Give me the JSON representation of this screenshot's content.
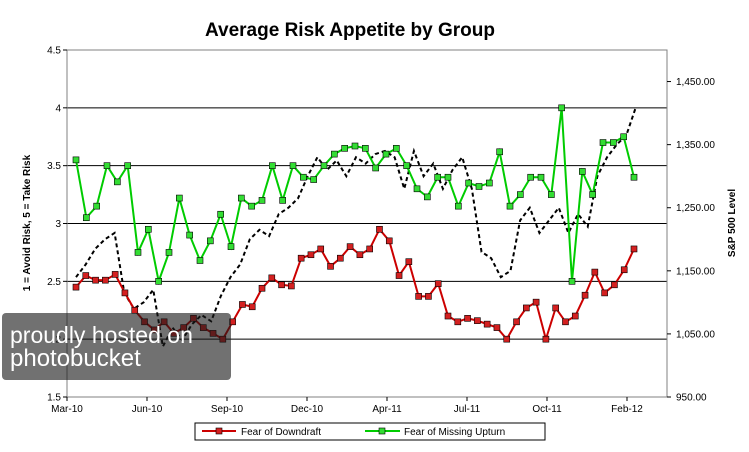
{
  "chart_data": {
    "type": "line",
    "title": "Average Risk Appetite by Group",
    "ylabel_left": "1 = Avoid Risk, 5 = Take Risk",
    "ylabel_right": "S&P 500 Level",
    "ylim_left": [
      1.5,
      4.5
    ],
    "ylim_right": [
      950,
      1500
    ],
    "left_ticks": [
      "1.5",
      "2",
      "2.5",
      "3",
      "3.5",
      "4",
      "4.5"
    ],
    "right_ticks": [
      "950.00",
      "1,050.00",
      "1,150.00",
      "1,250.00",
      "1,350.00",
      "1,450.00"
    ],
    "x_tick_labels": [
      "Mar-10",
      "Jun-10",
      "Sep-10",
      "Dec-10",
      "Apr-11",
      "Jul-11",
      "Oct-11",
      "Feb-12"
    ],
    "gridlines": true,
    "legend_position": "bottom",
    "series": [
      {
        "name": "Fear of Downdraft",
        "color": "#cc0000",
        "marker_fill": "#d42020",
        "values": [
          2.45,
          2.55,
          2.51,
          2.51,
          2.56,
          2.4,
          2.25,
          2.15,
          2.08,
          2.15,
          2.05,
          2.1,
          2.18,
          2.1,
          2.05,
          2.0,
          2.15,
          2.3,
          2.28,
          2.44,
          2.53,
          2.47,
          2.46,
          2.7,
          2.73,
          2.78,
          2.63,
          2.7,
          2.8,
          2.73,
          2.78,
          2.95,
          2.85,
          2.55,
          2.67,
          2.37,
          2.37,
          2.48,
          2.2,
          2.15,
          2.18,
          2.16,
          2.13,
          2.1,
          2.0,
          2.15,
          2.27,
          2.32,
          2.0,
          2.27,
          2.15,
          2.2,
          2.38,
          2.58,
          2.4,
          2.47,
          2.6,
          2.78
        ]
      },
      {
        "name": "Fear of Missing Upturn",
        "color": "#00cc00",
        "marker_fill": "#33dd33",
        "values": [
          3.55,
          3.05,
          3.15,
          3.5,
          3.36,
          3.5,
          2.75,
          2.95,
          2.5,
          2.75,
          3.22,
          2.9,
          2.68,
          2.85,
          3.08,
          2.8,
          3.22,
          3.15,
          3.2,
          3.5,
          3.2,
          3.5,
          3.4,
          3.38,
          3.5,
          3.6,
          3.65,
          3.67,
          3.65,
          3.48,
          3.6,
          3.65,
          3.5,
          3.3,
          3.23,
          3.4,
          3.4,
          3.15,
          3.35,
          3.32,
          3.35,
          3.62,
          3.15,
          3.25,
          3.4,
          3.4,
          3.25,
          4.0,
          2.5,
          3.45,
          3.25,
          3.7,
          3.7,
          3.75,
          3.4
        ]
      },
      {
        "name": "S&P 500 Level",
        "color": "#000000",
        "values": [
          1140,
          1160,
          1185,
          1200,
          1210,
          1115,
          1090,
          1100,
          1120,
          1030,
          1060,
          1040,
          1065,
          1080,
          1070,
          1110,
          1140,
          1160,
          1200,
          1215,
          1205,
          1240,
          1250,
          1265,
          1300,
          1330,
          1310,
          1325,
          1300,
          1330,
          1320,
          1335,
          1340,
          1330,
          1280,
          1340,
          1300,
          1320,
          1280,
          1310,
          1330,
          1280,
          1180,
          1170,
          1140,
          1150,
          1230,
          1250,
          1210,
          1230,
          1250,
          1210,
          1240,
          1220,
          1300,
          1330,
          1350,
          1365,
          1410
        ]
      }
    ]
  },
  "watermark": {
    "line1": "proudly hosted on",
    "line2": "photobucket"
  }
}
